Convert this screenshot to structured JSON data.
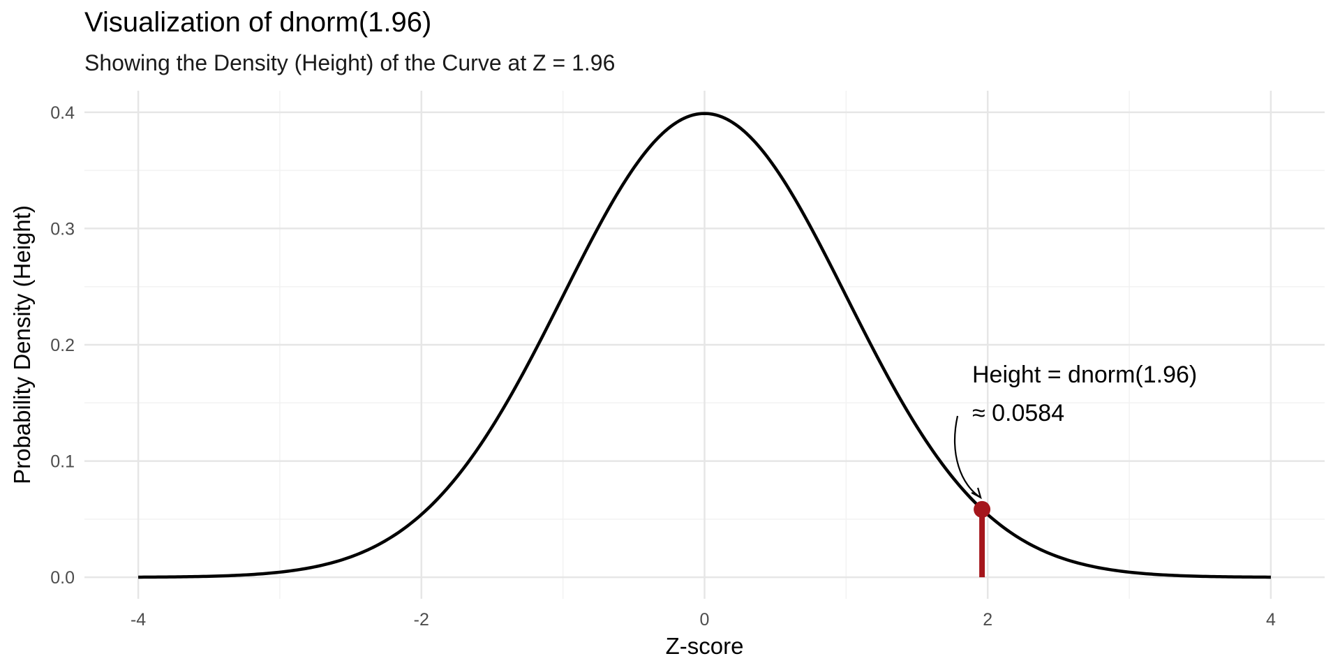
{
  "chart_data": {
    "type": "line",
    "title": "Visualization of dnorm(1.96)",
    "subtitle": "Showing the Density (Height) of the Curve at Z = 1.96",
    "xlabel": "Z-score",
    "ylabel": "Probability Density (Height)",
    "xlim": [
      -4,
      4
    ],
    "ylim": [
      0,
      0.4
    ],
    "x_ticks": [
      -4,
      -2,
      0,
      2,
      4
    ],
    "x_tick_labels": [
      "-4",
      "-2",
      "0",
      "2",
      "4"
    ],
    "y_ticks": [
      0.0,
      0.1,
      0.2,
      0.3,
      0.4
    ],
    "y_tick_labels": [
      "0.0",
      "0.1",
      "0.2",
      "0.3",
      "0.4"
    ],
    "grid": true,
    "series": [
      {
        "x": [
          -4.0,
          -3.5,
          -3.0,
          -2.5,
          -2.0,
          -1.5,
          -1.0,
          -0.5,
          0.0,
          0.5,
          1.0,
          1.5,
          2.0,
          2.5,
          3.0,
          3.5,
          4.0
        ],
        "y": [
          0.0001,
          0.0009,
          0.0044,
          0.0175,
          0.054,
          0.1295,
          0.242,
          0.3521,
          0.3989,
          0.3521,
          0.242,
          0.1295,
          0.054,
          0.0175,
          0.0044,
          0.0009,
          0.0001
        ]
      }
    ],
    "highlight": {
      "x": 1.96,
      "y": 0.0584,
      "color": "#a5161c"
    },
    "annotation": {
      "line1": "Height = dnorm(1.96)",
      "line2": "≈ 0.0584"
    },
    "colors": {
      "curve": "#000000",
      "grid_major": "#e6e6e6",
      "grid_minor": "#f2f2f2"
    }
  }
}
